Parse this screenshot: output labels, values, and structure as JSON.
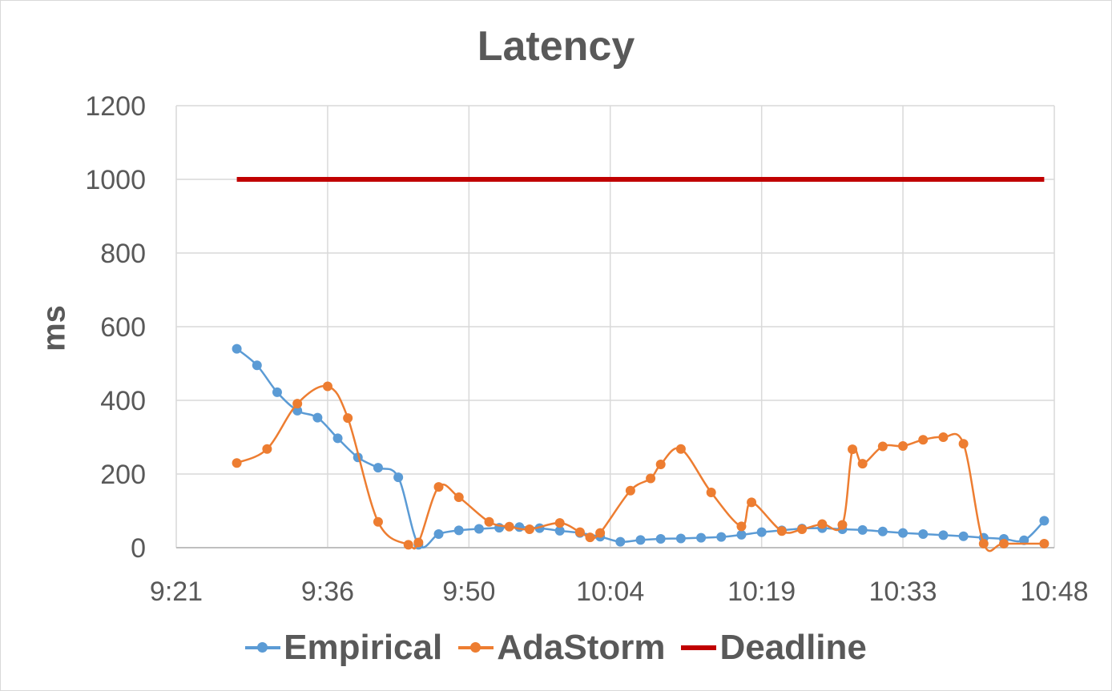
{
  "chart_data": {
    "type": "line",
    "title": "Latency",
    "xlabel": "",
    "ylabel": "ms",
    "ylim": [
      0,
      1200
    ],
    "xlim": [
      "9:21",
      "10:48"
    ],
    "x_ticks": [
      "9:21",
      "9:36",
      "9:50",
      "10:04",
      "10:19",
      "10:33",
      "10:48"
    ],
    "y_ticks": [
      "0",
      "200",
      "400",
      "600",
      "800",
      "1000",
      "1200"
    ],
    "grid": true,
    "legend_position": "bottom",
    "series": [
      {
        "name": "Empirical",
        "color": "#5B9BD5",
        "markers": true,
        "x": [
          "9:27",
          "9:29",
          "9:31",
          "9:33",
          "9:35",
          "9:37",
          "9:39",
          "9:41",
          "9:43",
          "9:45",
          "9:47",
          "9:49",
          "9:51",
          "9:53",
          "9:55",
          "9:57",
          "9:59",
          "10:01",
          "10:03",
          "10:05",
          "10:07",
          "10:09",
          "10:11",
          "10:13",
          "10:15",
          "10:17",
          "10:19",
          "10:21",
          "10:23",
          "10:25",
          "10:27",
          "10:29",
          "10:31",
          "10:33",
          "10:35",
          "10:37",
          "10:39",
          "10:41",
          "10:43",
          "10:45",
          "10:47"
        ],
        "values": [
          540,
          495,
          422,
          372,
          353,
          297,
          245,
          217,
          191,
          8,
          37,
          47,
          51,
          54,
          56,
          53,
          46,
          40,
          30,
          16,
          21,
          24,
          25,
          27,
          29,
          35,
          42,
          47,
          52,
          53,
          50,
          48,
          44,
          40,
          37,
          34,
          31,
          27,
          24,
          20,
          73
        ]
      },
      {
        "name": "AdaStorm",
        "color": "#ED7D31",
        "markers": true,
        "x": [
          "9:27",
          "9:30",
          "9:33",
          "9:36",
          "9:38",
          "9:41",
          "9:44",
          "9:45",
          "9:47",
          "9:49",
          "9:52",
          "9:54",
          "9:56",
          "9:59",
          "10:01",
          "10:02",
          "10:03",
          "10:06",
          "10:08",
          "10:09",
          "10:11",
          "10:14",
          "10:17",
          "10:18",
          "10:21",
          "10:23",
          "10:25",
          "10:27",
          "10:28",
          "10:29",
          "10:31",
          "10:33",
          "10:35",
          "10:37",
          "10:39",
          "10:41",
          "10:43",
          "10:47"
        ],
        "values": [
          230,
          268,
          391,
          438,
          352,
          70,
          8,
          14,
          165,
          137,
          70,
          57,
          50,
          67,
          42,
          28,
          40,
          155,
          188,
          226,
          268,
          150,
          58,
          123,
          45,
          50,
          64,
          62,
          267,
          228,
          275,
          276,
          293,
          300,
          282,
          11,
          11,
          11
        ]
      },
      {
        "name": "Deadline",
        "color": "#C00000",
        "markers": false,
        "x": [
          "9:27",
          "10:47"
        ],
        "values": [
          1000,
          1000
        ]
      }
    ]
  }
}
